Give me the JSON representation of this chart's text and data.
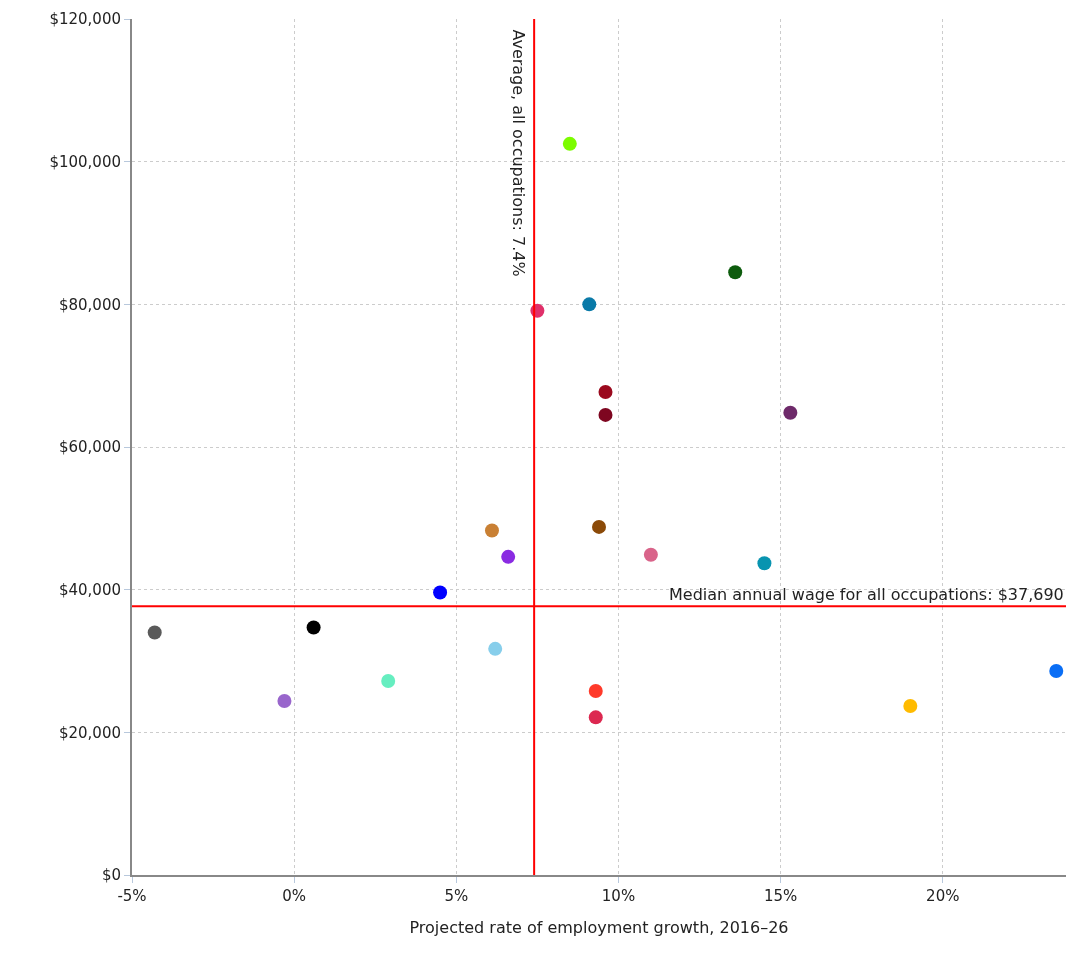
{
  "chart_data": {
    "type": "scatter",
    "xlabel": "Projected rate of employment growth, 2016–26",
    "x": [
      8.5,
      7.5,
      9.1,
      13.6,
      9.6,
      9.6,
      15.3,
      6.1,
      6.6,
      4.5,
      -4.3,
      0.6,
      6.2,
      2.9,
      -0.3,
      9.4,
      11.0,
      14.5,
      9.3,
      9.3,
      19.0,
      23.5
    ],
    "values": [
      102500,
      79100,
      80000,
      84500,
      67700,
      64500,
      64800,
      48300,
      44600,
      39600,
      34000,
      34700,
      31700,
      27200,
      24400,
      48800,
      44900,
      43700,
      25800,
      22100,
      23700,
      28600
    ],
    "colors": [
      "#7cfc00",
      "#e0306a",
      "#0a7aa8",
      "#0d5c0d",
      "#9b0a1e",
      "#7e0620",
      "#6e2a6a",
      "#c98034",
      "#8a2be2",
      "#0000ff",
      "#5a5a5a",
      "#000000",
      "#87ceeb",
      "#66eec0",
      "#9966cc",
      "#8b4a08",
      "#d9648a",
      "#0894b0",
      "#ff3a2a",
      "#dc2850",
      "#ffbb00",
      "#0a6ef5"
    ],
    "marker": "circle",
    "xlim": [
      -5,
      23.8
    ],
    "ylim": [
      0,
      120000
    ],
    "xticks": [
      {
        "value": -5,
        "label": "-5%"
      },
      {
        "value": 0,
        "label": "0%"
      },
      {
        "value": 5,
        "label": "5%"
      },
      {
        "value": 10,
        "label": "10%"
      },
      {
        "value": 15,
        "label": "15%"
      },
      {
        "value": 20,
        "label": "20%"
      }
    ],
    "yticks": [
      {
        "value": 0,
        "label": "$0"
      },
      {
        "value": 20000,
        "label": "$20,000"
      },
      {
        "value": 40000,
        "label": "$40,000"
      },
      {
        "value": 60000,
        "label": "$60,000"
      },
      {
        "value": 80000,
        "label": "$80,000"
      },
      {
        "value": 100000,
        "label": "$100,000"
      },
      {
        "value": 120000,
        "label": "$120,000"
      }
    ],
    "grid": true,
    "ref_lines": [
      {
        "axis": "x",
        "value": 7.4,
        "label": "Average, all occupations: 7.4%",
        "color": "#ff0000"
      },
      {
        "axis": "y",
        "value": 37690,
        "label": "Median annual wage for all occupations: $37,690",
        "color": "#ff0000"
      }
    ]
  }
}
